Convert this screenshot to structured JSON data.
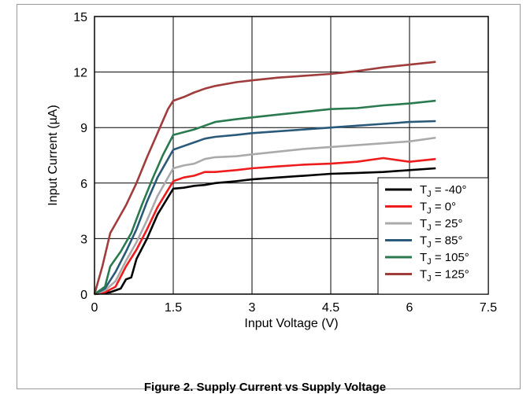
{
  "caption": "Figure 2. Supply Current vs Supply Voltage",
  "chart_data": {
    "type": "line",
    "title": "",
    "xlabel": "Input Voltage (V)",
    "ylabel_main": "Input Current (",
    "ylabel_unit": "µA",
    "ylabel_close": ")",
    "xlim": [
      0,
      7.5
    ],
    "ylim": [
      0,
      15
    ],
    "xticks": [
      0,
      1.5,
      3,
      4.5,
      6,
      7.5
    ],
    "xtick_labels": [
      "0",
      "1.5",
      "3",
      "4.5",
      "6",
      "7.5"
    ],
    "yticks": [
      0,
      3,
      6,
      9,
      12,
      15
    ],
    "ytick_labels": [
      "0",
      "3",
      "6",
      "9",
      "12",
      "15"
    ],
    "grid": true,
    "legend_position": "bottom-right",
    "series": [
      {
        "name_prefix": "T",
        "name_sub": "J",
        "name_suffix": " = -40°",
        "color": "#000000",
        "x": [
          0,
          0.3,
          0.5,
          0.6,
          0.7,
          0.8,
          1.0,
          1.2,
          1.5,
          1.7,
          1.9,
          2.1,
          2.3,
          2.7,
          3.0,
          3.5,
          4.0,
          4.5,
          5.0,
          5.5,
          6.0,
          6.5
        ],
        "y": [
          0,
          0.1,
          0.3,
          0.8,
          0.9,
          1.9,
          3.0,
          4.3,
          5.7,
          5.75,
          5.85,
          5.9,
          6.0,
          6.1,
          6.2,
          6.3,
          6.4,
          6.5,
          6.55,
          6.6,
          6.7,
          6.8
        ]
      },
      {
        "name_prefix": "T",
        "name_sub": "J",
        "name_suffix": " = 0°",
        "color": "#ee1c1c",
        "x": [
          0,
          0.2,
          0.4,
          0.6,
          0.8,
          1.0,
          1.2,
          1.5,
          1.7,
          1.9,
          2.1,
          2.3,
          2.7,
          3.0,
          3.5,
          4.0,
          4.5,
          5.0,
          5.5,
          6.0,
          6.5
        ],
        "y": [
          0,
          0.1,
          0.4,
          1.5,
          2.4,
          3.5,
          4.7,
          6.1,
          6.3,
          6.4,
          6.6,
          6.6,
          6.7,
          6.8,
          6.9,
          7.0,
          7.05,
          7.15,
          7.35,
          7.15,
          7.3
        ]
      },
      {
        "name_prefix": "T",
        "name_sub": "J",
        "name_suffix": " = 25°",
        "color": "#aaaaaa",
        "x": [
          0,
          0.2,
          0.4,
          0.6,
          0.8,
          1.0,
          1.2,
          1.5,
          1.7,
          1.9,
          2.1,
          2.3,
          2.7,
          3.0,
          3.5,
          4.0,
          4.5,
          5.0,
          5.5,
          6.0,
          6.5
        ],
        "y": [
          0,
          0.2,
          0.7,
          1.8,
          2.8,
          4.0,
          5.3,
          6.8,
          6.95,
          7.05,
          7.3,
          7.4,
          7.45,
          7.55,
          7.7,
          7.85,
          7.95,
          8.05,
          8.15,
          8.25,
          8.45
        ]
      },
      {
        "name_prefix": "T",
        "name_sub": "J",
        "name_suffix": " = 85°",
        "color": "#2a5a7a",
        "x": [
          0,
          0.2,
          0.4,
          0.6,
          0.8,
          1.0,
          1.2,
          1.5,
          1.7,
          1.9,
          2.1,
          2.3,
          2.7,
          3.0,
          3.5,
          4.0,
          4.5,
          5.0,
          5.5,
          6.0,
          6.5
        ],
        "y": [
          0,
          0.3,
          1.2,
          2.3,
          3.5,
          5.0,
          6.3,
          7.8,
          8.0,
          8.2,
          8.4,
          8.5,
          8.6,
          8.7,
          8.8,
          8.9,
          9.0,
          9.1,
          9.2,
          9.3,
          9.35
        ]
      },
      {
        "name_prefix": "T",
        "name_sub": "J",
        "name_suffix": " = 105°",
        "color": "#2a7a50",
        "x": [
          0,
          0.2,
          0.3,
          0.5,
          0.7,
          0.9,
          1.1,
          1.3,
          1.5,
          1.7,
          1.9,
          2.1,
          2.3,
          2.7,
          3.0,
          3.5,
          4.0,
          4.5,
          5.0,
          5.5,
          6.0,
          6.5
        ],
        "y": [
          0,
          0.4,
          1.5,
          2.3,
          3.3,
          4.8,
          6.2,
          7.5,
          8.6,
          8.75,
          8.9,
          9.1,
          9.3,
          9.45,
          9.55,
          9.7,
          9.85,
          10.0,
          10.05,
          10.2,
          10.3,
          10.45
        ]
      },
      {
        "name_prefix": "T",
        "name_sub": "J",
        "name_suffix": " = 125°",
        "color": "#a03c3c",
        "x": [
          0,
          0.15,
          0.3,
          0.4,
          0.6,
          0.8,
          1.0,
          1.2,
          1.4,
          1.5,
          1.7,
          1.9,
          2.1,
          2.3,
          2.7,
          3.0,
          3.5,
          4.0,
          4.5,
          5.0,
          5.5,
          6.0,
          6.5
        ],
        "y": [
          0,
          1.5,
          3.3,
          3.8,
          4.8,
          6.0,
          7.4,
          8.7,
          10.0,
          10.45,
          10.65,
          10.9,
          11.1,
          11.25,
          11.45,
          11.55,
          11.7,
          11.8,
          11.9,
          12.05,
          12.25,
          12.4,
          12.55
        ]
      }
    ]
  }
}
